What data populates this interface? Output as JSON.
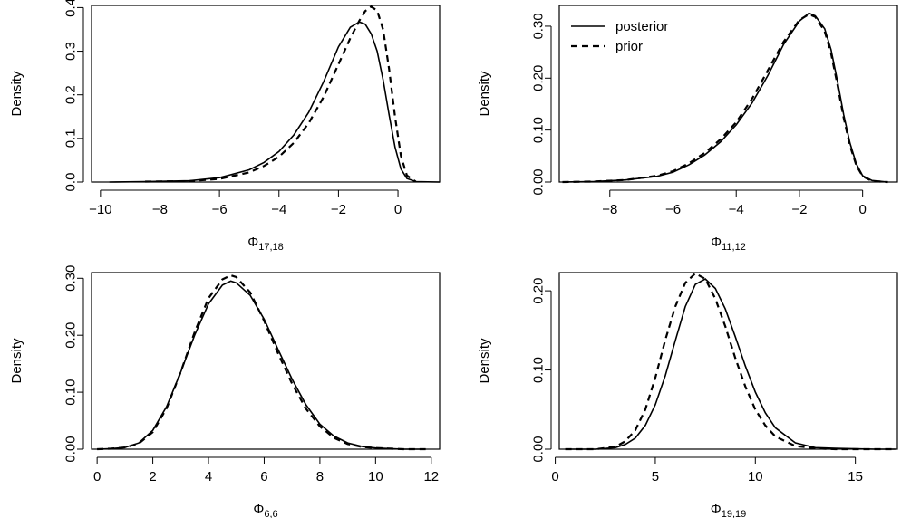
{
  "figure": {
    "legend": [
      {
        "label": "posterior",
        "style": "solid"
      },
      {
        "label": "prior",
        "style": "dashed"
      }
    ]
  },
  "chart_data": [
    {
      "type": "line",
      "xlabel_main": "Φ",
      "xlabel_sub": "17,18",
      "ylabel": "Density",
      "xlim": [
        -10.3,
        1.4
      ],
      "ylim": [
        0,
        0.405
      ],
      "xticks": [
        -10,
        -8,
        -6,
        -4,
        -2,
        0
      ],
      "xtick_labels": [
        "−10",
        "−8",
        "−6",
        "−4",
        "−2",
        "0"
      ],
      "yticks": [
        0,
        0.1,
        0.2,
        0.3,
        0.4
      ],
      "ytick_labels": [
        "0.0",
        "0.1",
        "0.2",
        "0.3",
        "0.4"
      ],
      "legend": false,
      "series": [
        {
          "name": "posterior",
          "style": "solid",
          "x": [
            -9.7,
            -8.5,
            -7,
            -6,
            -5,
            -4.5,
            -4,
            -3.5,
            -3,
            -2.5,
            -2,
            -1.6,
            -1.3,
            -1.1,
            -0.9,
            -0.7,
            -0.5,
            -0.3,
            -0.1,
            0.1,
            0.3,
            0.6,
            1.4
          ],
          "y": [
            0,
            0.001,
            0.003,
            0.01,
            0.028,
            0.045,
            0.07,
            0.108,
            0.16,
            0.23,
            0.31,
            0.355,
            0.367,
            0.362,
            0.34,
            0.3,
            0.235,
            0.155,
            0.08,
            0.03,
            0.008,
            0.001,
            0
          ]
        },
        {
          "name": "prior",
          "style": "dashed",
          "x": [
            -8.5,
            -7,
            -6,
            -5,
            -4.5,
            -4,
            -3.5,
            -3,
            -2.5,
            -2,
            -1.6,
            -1.3,
            -1.1,
            -0.9,
            -0.7,
            -0.5,
            -0.3,
            -0.1,
            0.1,
            0.3,
            0.6
          ],
          "y": [
            0.001,
            0.002,
            0.007,
            0.022,
            0.037,
            0.058,
            0.09,
            0.135,
            0.195,
            0.27,
            0.33,
            0.37,
            0.392,
            0.402,
            0.393,
            0.35,
            0.26,
            0.15,
            0.06,
            0.015,
            0.001
          ]
        }
      ]
    },
    {
      "type": "line",
      "xlabel_main": "Φ",
      "xlabel_sub": "11,12",
      "ylabel": "Density",
      "xlim": [
        -9.6,
        1.1
      ],
      "ylim": [
        0,
        0.34
      ],
      "xticks": [
        -8,
        -6,
        -4,
        -2,
        0
      ],
      "xtick_labels": [
        "−8",
        "−6",
        "−4",
        "−2",
        "0"
      ],
      "yticks": [
        0,
        0.1,
        0.2,
        0.3
      ],
      "ytick_labels": [
        "0.00",
        "0.10",
        "0.20",
        "0.30"
      ],
      "legend": true,
      "series": [
        {
          "name": "posterior",
          "style": "solid",
          "x": [
            -9.5,
            -8.5,
            -7.5,
            -6.5,
            -6,
            -5.5,
            -5,
            -4.5,
            -4,
            -3.5,
            -3,
            -2.5,
            -2,
            -1.7,
            -1.5,
            -1.2,
            -1,
            -0.8,
            -0.6,
            -0.4,
            -0.2,
            0,
            0.3,
            0.8
          ],
          "y": [
            0,
            0.001,
            0.004,
            0.011,
            0.019,
            0.033,
            0.052,
            0.077,
            0.11,
            0.152,
            0.205,
            0.265,
            0.31,
            0.325,
            0.32,
            0.295,
            0.255,
            0.195,
            0.13,
            0.075,
            0.035,
            0.012,
            0.003,
            0
          ]
        },
        {
          "name": "prior",
          "style": "dashed",
          "x": [
            -9.5,
            -8.5,
            -7.5,
            -6.5,
            -6,
            -5.5,
            -5,
            -4.5,
            -4,
            -3.5,
            -3,
            -2.5,
            -2,
            -1.7,
            -1.5,
            -1.2,
            -1,
            -0.8,
            -0.6,
            -0.4,
            -0.2,
            0,
            0.3,
            0.8
          ],
          "y": [
            0,
            0.001,
            0.004,
            0.012,
            0.021,
            0.036,
            0.056,
            0.082,
            0.115,
            0.16,
            0.215,
            0.27,
            0.312,
            0.323,
            0.318,
            0.29,
            0.248,
            0.188,
            0.124,
            0.07,
            0.032,
            0.011,
            0.002,
            0
          ]
        }
      ]
    },
    {
      "type": "line",
      "xlabel_main": "Φ",
      "xlabel_sub": "6,6",
      "ylabel": "Density",
      "xlim": [
        -0.2,
        12.3
      ],
      "ylim": [
        0,
        0.31
      ],
      "xticks": [
        0,
        2,
        4,
        6,
        8,
        10,
        12
      ],
      "xtick_labels": [
        "0",
        "2",
        "4",
        "6",
        "8",
        "10",
        "12"
      ],
      "yticks": [
        0,
        0.1,
        0.2,
        0.3
      ],
      "ytick_labels": [
        "0.00",
        "0.10",
        "0.20",
        "0.30"
      ],
      "legend": false,
      "series": [
        {
          "name": "posterior",
          "style": "solid",
          "x": [
            0,
            0.5,
            1,
            1.5,
            2,
            2.5,
            3,
            3.5,
            4,
            4.5,
            4.8,
            5,
            5.5,
            6,
            6.5,
            7,
            7.5,
            8,
            8.5,
            9,
            9.5,
            10,
            11,
            11.8
          ],
          "y": [
            0,
            0.001,
            0.003,
            0.011,
            0.033,
            0.075,
            0.135,
            0.2,
            0.255,
            0.288,
            0.295,
            0.292,
            0.27,
            0.228,
            0.175,
            0.123,
            0.078,
            0.044,
            0.023,
            0.011,
            0.005,
            0.002,
            0,
            0
          ]
        },
        {
          "name": "prior",
          "style": "dashed",
          "x": [
            0,
            0.5,
            1,
            1.5,
            2,
            2.5,
            3,
            3.5,
            4,
            4.5,
            4.8,
            5,
            5.5,
            6,
            6.5,
            7,
            7.5,
            8,
            8.5,
            9,
            9.5,
            10,
            11,
            11.8
          ],
          "y": [
            0,
            0.001,
            0.003,
            0.01,
            0.03,
            0.072,
            0.135,
            0.205,
            0.265,
            0.298,
            0.305,
            0.302,
            0.275,
            0.225,
            0.168,
            0.115,
            0.071,
            0.04,
            0.02,
            0.009,
            0.004,
            0.002,
            0,
            0
          ]
        }
      ]
    },
    {
      "type": "line",
      "xlabel_main": "Φ",
      "xlabel_sub": "19,19",
      "ylabel": "Density",
      "xlim": [
        0.2,
        17.1
      ],
      "ylim": [
        0,
        0.223
      ],
      "xticks": [
        0,
        5,
        10,
        15
      ],
      "xtick_labels": [
        "0",
        "5",
        "10",
        "15"
      ],
      "yticks": [
        0,
        0.1,
        0.2
      ],
      "ytick_labels": [
        "0.00",
        "0.10",
        "0.20"
      ],
      "legend": false,
      "series": [
        {
          "name": "posterior",
          "style": "solid",
          "x": [
            0.5,
            2,
            3,
            3.5,
            4,
            4.5,
            5,
            5.5,
            6,
            6.5,
            7,
            7.5,
            8,
            8.5,
            9,
            9.5,
            10,
            10.5,
            11,
            12,
            13,
            14,
            16,
            17
          ],
          "y": [
            0,
            0,
            0.002,
            0.006,
            0.014,
            0.03,
            0.056,
            0.093,
            0.137,
            0.18,
            0.208,
            0.215,
            0.203,
            0.177,
            0.142,
            0.105,
            0.072,
            0.046,
            0.027,
            0.008,
            0.002,
            0.001,
            0,
            0
          ]
        },
        {
          "name": "prior",
          "style": "dashed",
          "x": [
            0.5,
            2,
            3,
            3.5,
            4,
            4.5,
            5,
            5.5,
            6,
            6.5,
            7,
            7.5,
            8,
            8.5,
            9,
            9.5,
            10,
            10.5,
            11,
            12,
            13,
            14,
            16,
            17
          ],
          "y": [
            0,
            0,
            0.003,
            0.01,
            0.024,
            0.05,
            0.09,
            0.138,
            0.18,
            0.21,
            0.222,
            0.215,
            0.19,
            0.155,
            0.115,
            0.079,
            0.05,
            0.03,
            0.016,
            0.004,
            0.001,
            0,
            0,
            0
          ]
        }
      ]
    }
  ]
}
